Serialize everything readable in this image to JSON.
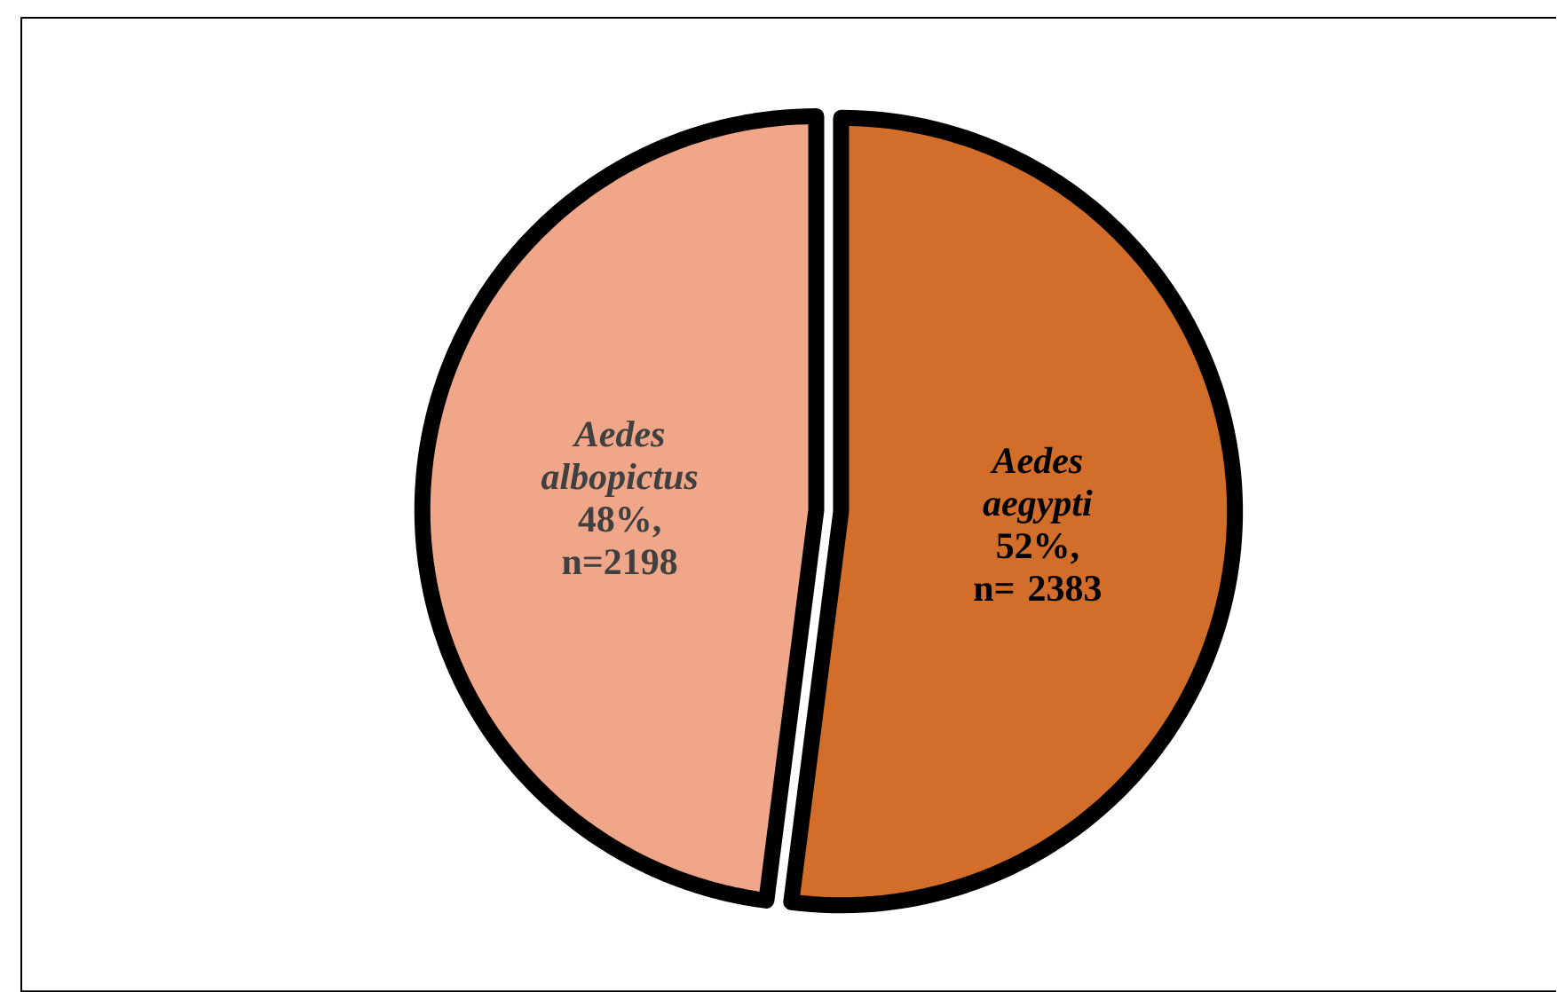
{
  "chart_data": {
    "type": "pie",
    "categories": [
      "Aedes aegypti",
      "Aedes albopictus"
    ],
    "values": [
      2383,
      2198
    ],
    "colors": [
      "#d26e2a",
      "#f0a688"
    ],
    "value_labels": [
      "52%, n= 2383",
      "48%, n=2198"
    ]
  }
}
